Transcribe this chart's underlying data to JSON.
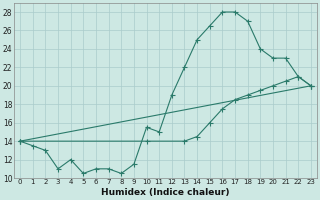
{
  "xlabel": "Humidex (Indice chaleur)",
  "bg_color": "#cde8e3",
  "grid_color": "#aacccc",
  "line_color": "#2a7a6a",
  "line1_x": [
    0,
    1,
    2,
    3,
    4,
    5,
    6,
    7,
    8,
    9,
    10,
    11,
    12,
    13,
    14,
    15,
    16,
    17,
    18,
    19,
    20,
    21,
    22,
    23
  ],
  "line1_y": [
    14,
    13.5,
    13,
    11,
    12,
    10.5,
    11,
    11,
    10.5,
    11.5,
    15.5,
    15,
    19,
    22,
    25,
    26.5,
    28,
    28,
    27,
    24,
    23,
    23,
    21,
    20
  ],
  "line2_x": [
    0,
    23
  ],
  "line2_y": [
    14,
    20
  ],
  "line3_x": [
    0,
    10,
    13,
    14,
    15,
    16,
    17,
    18,
    19,
    20,
    21,
    22,
    23
  ],
  "line3_y": [
    14,
    14,
    14,
    14.5,
    16,
    17.5,
    18.5,
    19,
    19.5,
    20,
    20.5,
    21,
    20
  ],
  "ylim": [
    10,
    29
  ],
  "xlim": [
    -0.5,
    23.5
  ],
  "yticks": [
    10,
    12,
    14,
    16,
    18,
    20,
    22,
    24,
    26,
    28
  ],
  "xticks": [
    0,
    1,
    2,
    3,
    4,
    5,
    6,
    7,
    8,
    9,
    10,
    11,
    12,
    13,
    14,
    15,
    16,
    17,
    18,
    19,
    20,
    21,
    22,
    23
  ]
}
